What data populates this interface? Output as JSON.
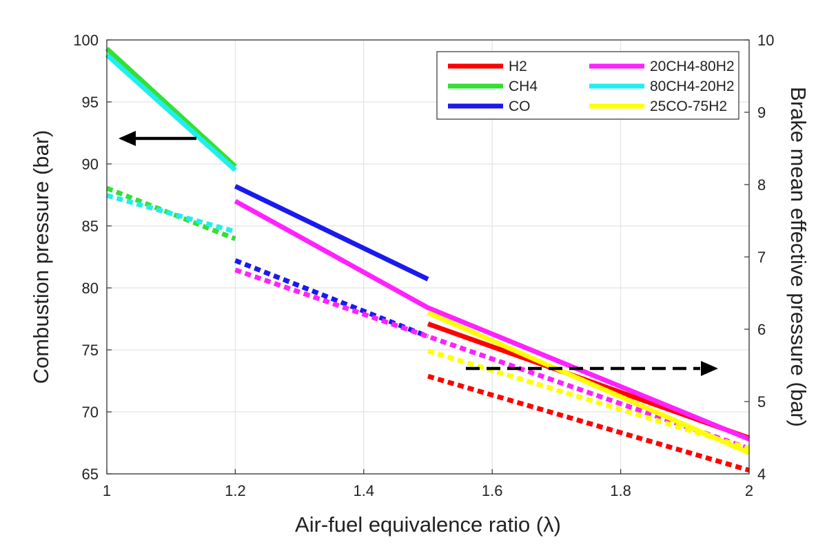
{
  "chart_data": {
    "type": "line",
    "title": "",
    "xlabel": "Air-fuel equivalence ratio (λ)",
    "ylabel_left": "Combustion pressure (bar)",
    "ylabel_right": "Brake mean effective pressure (bar)",
    "xlim": [
      1,
      2
    ],
    "ylim_left": [
      65,
      100
    ],
    "ylim_right": [
      4,
      10
    ],
    "x_ticks": [
      "1",
      "1.2",
      "1.4",
      "1.6",
      "1.8",
      "2"
    ],
    "y_left_ticks": [
      "65",
      "70",
      "75",
      "80",
      "85",
      "90",
      "95",
      "100"
    ],
    "y_right_ticks": [
      "4",
      "5",
      "6",
      "7",
      "8",
      "9",
      "10"
    ],
    "grid": true,
    "legend_position": "top-right",
    "legend_columns": 2,
    "series": [
      {
        "name": "H2",
        "color": "#ff0000",
        "combustion_pressure": {
          "x": [
            1.5,
            2
          ],
          "y": [
            77.1,
            67.9
          ]
        },
        "bmep": {
          "x": [
            1.5,
            2
          ],
          "y": [
            5.35,
            4.05
          ]
        }
      },
      {
        "name": "CH4",
        "color": "#33e033",
        "combustion_pressure": {
          "x": [
            1,
            1.2
          ],
          "y": [
            99.3,
            89.8
          ]
        },
        "bmep": {
          "x": [
            1,
            1.2
          ],
          "y": [
            7.95,
            7.25
          ]
        }
      },
      {
        "name": "CO",
        "color": "#1a1aee",
        "combustion_pressure": {
          "x": [
            1.2,
            1.5
          ],
          "y": [
            88.2,
            80.7
          ]
        },
        "bmep": {
          "x": [
            1.2,
            1.5
          ],
          "y": [
            6.95,
            5.9
          ]
        }
      },
      {
        "name": "20CH4-80H2",
        "color": "#ff22ff",
        "combustion_pressure": {
          "x": [
            1.2,
            1.5,
            2
          ],
          "y": [
            87.0,
            78.4,
            67.8
          ]
        },
        "bmep": {
          "x": [
            1.2,
            1.5,
            2
          ],
          "y": [
            6.82,
            5.9,
            4.35
          ]
        }
      },
      {
        "name": "80CH4-20H2",
        "color": "#22eeee",
        "combustion_pressure": {
          "x": [
            1,
            1.2
          ],
          "y": [
            98.8,
            89.5
          ]
        },
        "bmep": {
          "x": [
            1,
            1.2
          ],
          "y": [
            7.85,
            7.35
          ]
        }
      },
      {
        "name": "25CO-75H2",
        "color": "#ffff00",
        "combustion_pressure": {
          "x": [
            1.5,
            2
          ],
          "y": [
            78.0,
            66.7
          ]
        },
        "bmep": {
          "x": [
            1.5,
            2
          ],
          "y": [
            5.7,
            4.35
          ]
        }
      }
    ],
    "annotations": [
      {
        "type": "arrow",
        "style": "solid",
        "direction": "left",
        "indicates": "left-axis"
      },
      {
        "type": "arrow",
        "style": "dashed",
        "direction": "right",
        "indicates": "right-axis"
      }
    ]
  }
}
